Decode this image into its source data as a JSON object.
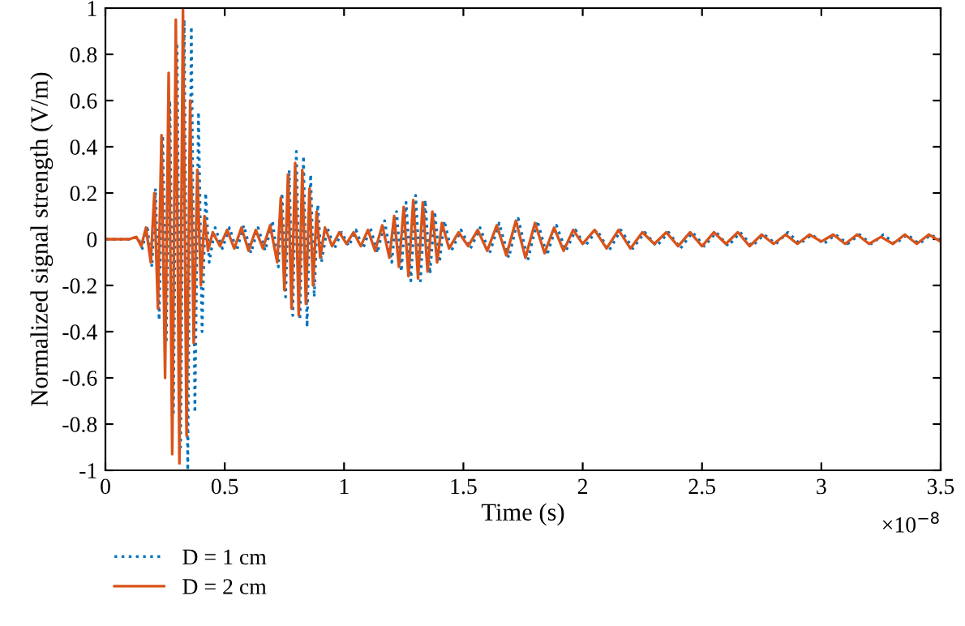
{
  "chart_data": {
    "type": "line",
    "xlabel": "Time (s)",
    "ylabel": "Normalized signal strength (V/m)",
    "xlim": [
      0,
      3.5
    ],
    "ylim": [
      -1,
      1
    ],
    "xticks": [
      0,
      0.5,
      1,
      1.5,
      2,
      2.5,
      3,
      3.5
    ],
    "yticks": [
      -1,
      -0.8,
      -0.6,
      -0.4,
      -0.2,
      0,
      0.2,
      0.4,
      0.6,
      0.8,
      1
    ],
    "grid": false,
    "legend": "bottom left",
    "marker": "none",
    "annotations": [
      "×10$^{−8}$"
    ],
    "series": [
      {
        "name": "D = 1 cm",
        "color": "#0072bd",
        "line_style": "dotted",
        "x": [
          0,
          0.1,
          0.135,
          0.155,
          0.175,
          0.195,
          0.21,
          0.225,
          0.24,
          0.255,
          0.27,
          0.285,
          0.3,
          0.315,
          0.33,
          0.345,
          0.36,
          0.375,
          0.39,
          0.405,
          0.42,
          0.435,
          0.46,
          0.49,
          0.52,
          0.55,
          0.58,
          0.61,
          0.64,
          0.67,
          0.7,
          0.725,
          0.74,
          0.755,
          0.77,
          0.785,
          0.8,
          0.815,
          0.83,
          0.845,
          0.86,
          0.875,
          0.89,
          0.905,
          0.93,
          0.96,
          0.99,
          1.02,
          1.05,
          1.08,
          1.11,
          1.14,
          1.17,
          1.2,
          1.22,
          1.24,
          1.26,
          1.28,
          1.3,
          1.32,
          1.34,
          1.36,
          1.38,
          1.4,
          1.42,
          1.45,
          1.49,
          1.53,
          1.57,
          1.61,
          1.65,
          1.69,
          1.73,
          1.77,
          1.81,
          1.85,
          1.89,
          1.93,
          1.97,
          2.01,
          2.06,
          2.11,
          2.16,
          2.21,
          2.26,
          2.31,
          2.36,
          2.41,
          2.46,
          2.51,
          2.56,
          2.61,
          2.66,
          2.71,
          2.76,
          2.81,
          2.86,
          2.91,
          2.96,
          3.01,
          3.06,
          3.11,
          3.16,
          3.21,
          3.26,
          3.31,
          3.36,
          3.41,
          3.46,
          3.5
        ],
        "values": [
          0,
          0,
          0.01,
          -0.04,
          0.06,
          -0.12,
          0.22,
          -0.35,
          0.45,
          -0.45,
          0.6,
          -0.75,
          0.85,
          -0.9,
          0.95,
          -1.0,
          0.92,
          -0.75,
          0.55,
          -0.4,
          0.2,
          -0.1,
          0.05,
          -0.04,
          0.05,
          -0.05,
          0.06,
          -0.06,
          0.05,
          -0.05,
          0.08,
          -0.12,
          0.2,
          -0.25,
          0.3,
          -0.33,
          0.38,
          -0.35,
          0.36,
          -0.38,
          0.28,
          -0.25,
          0.15,
          -0.1,
          0.05,
          -0.04,
          0.03,
          -0.03,
          0.04,
          -0.04,
          0.05,
          -0.06,
          0.08,
          -0.1,
          0.12,
          -0.14,
          0.16,
          -0.18,
          0.19,
          -0.18,
          0.17,
          -0.15,
          0.12,
          -0.1,
          0.08,
          -0.05,
          0.04,
          -0.04,
          0.05,
          -0.06,
          0.07,
          -0.08,
          0.09,
          -0.09,
          0.08,
          -0.07,
          0.06,
          -0.05,
          0.04,
          -0.03,
          0.04,
          -0.05,
          0.04,
          -0.04,
          0.03,
          -0.03,
          0.03,
          -0.04,
          0.03,
          -0.03,
          0.03,
          -0.03,
          0.03,
          -0.03,
          0.02,
          -0.02,
          0.03,
          -0.02,
          0.02,
          -0.02,
          0.02,
          -0.02,
          0.02,
          -0.02,
          0.02,
          -0.02,
          0.02,
          -0.02,
          0.02,
          -0.01
        ]
      },
      {
        "name": "D = 2 cm",
        "color": "#d95319",
        "line_style": "solid",
        "x": [
          0,
          0.1,
          0.13,
          0.15,
          0.17,
          0.19,
          0.205,
          0.22,
          0.235,
          0.25,
          0.265,
          0.28,
          0.295,
          0.31,
          0.325,
          0.34,
          0.355,
          0.37,
          0.385,
          0.4,
          0.415,
          0.43,
          0.45,
          0.48,
          0.51,
          0.54,
          0.57,
          0.6,
          0.63,
          0.66,
          0.69,
          0.72,
          0.735,
          0.75,
          0.765,
          0.78,
          0.795,
          0.81,
          0.825,
          0.84,
          0.855,
          0.87,
          0.885,
          0.9,
          0.92,
          0.95,
          0.98,
          1.01,
          1.04,
          1.07,
          1.1,
          1.13,
          1.16,
          1.19,
          1.21,
          1.23,
          1.25,
          1.27,
          1.29,
          1.31,
          1.33,
          1.35,
          1.37,
          1.39,
          1.41,
          1.44,
          1.48,
          1.52,
          1.56,
          1.6,
          1.64,
          1.68,
          1.72,
          1.76,
          1.8,
          1.84,
          1.88,
          1.92,
          1.96,
          2.0,
          2.05,
          2.1,
          2.15,
          2.2,
          2.25,
          2.3,
          2.35,
          2.4,
          2.45,
          2.5,
          2.55,
          2.6,
          2.65,
          2.7,
          2.75,
          2.8,
          2.85,
          2.9,
          2.95,
          3.0,
          3.05,
          3.1,
          3.15,
          3.2,
          3.25,
          3.3,
          3.35,
          3.4,
          3.45,
          3.5
        ],
        "values": [
          0,
          0,
          0.01,
          -0.03,
          0.05,
          -0.1,
          0.2,
          -0.3,
          0.45,
          -0.6,
          0.72,
          -0.93,
          0.95,
          -0.97,
          1.0,
          -0.85,
          0.6,
          -0.45,
          0.3,
          -0.2,
          0.1,
          -0.05,
          0.03,
          -0.03,
          0.04,
          -0.04,
          0.05,
          -0.05,
          0.04,
          -0.04,
          0.06,
          -0.1,
          0.18,
          -0.22,
          0.28,
          -0.3,
          0.33,
          -0.33,
          0.3,
          -0.28,
          0.22,
          -0.2,
          0.12,
          -0.08,
          0.05,
          -0.03,
          0.03,
          -0.02,
          0.03,
          -0.03,
          0.04,
          -0.05,
          0.06,
          -0.08,
          0.1,
          -0.12,
          0.14,
          -0.16,
          0.17,
          -0.17,
          0.16,
          -0.14,
          0.12,
          -0.1,
          0.07,
          -0.04,
          0.03,
          -0.03,
          0.04,
          -0.05,
          0.06,
          -0.07,
          0.08,
          -0.08,
          0.07,
          -0.06,
          0.05,
          -0.05,
          0.04,
          -0.02,
          0.04,
          -0.04,
          0.04,
          -0.04,
          0.03,
          -0.02,
          0.03,
          -0.03,
          0.03,
          -0.03,
          0.03,
          -0.02,
          0.03,
          -0.03,
          0.02,
          -0.02,
          0.02,
          -0.02,
          0.02,
          -0.01,
          0.02,
          -0.02,
          0.02,
          -0.02,
          0.01,
          -0.02,
          0.02,
          -0.02,
          0.02,
          -0.01
        ]
      }
    ]
  }
}
